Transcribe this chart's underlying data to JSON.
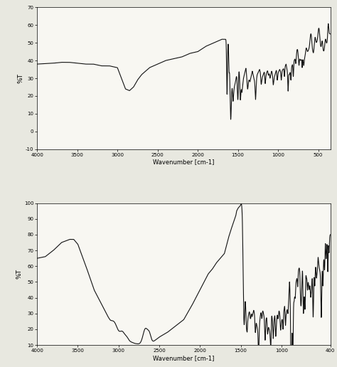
{
  "chart_a": {
    "xlabel": "Wavenumber [cm-1]",
    "ylabel": "%T",
    "xlim": [
      4000,
      350
    ],
    "ylim": [
      -10,
      70
    ],
    "yticks": [
      -10,
      0,
      10,
      20,
      30,
      40,
      50,
      60,
      70
    ],
    "xticks": [
      4000,
      3500,
      3000,
      2500,
      2000,
      1500,
      1000,
      500
    ],
    "xticklabels": [
      "4000",
      "3500",
      "3000",
      "2500",
      "2000",
      "1500",
      "1000",
      "500"
    ],
    "yticklabels": [
      "-10",
      "0",
      "10",
      "20",
      "30",
      "40",
      "50",
      "60",
      "70"
    ]
  },
  "chart_b": {
    "xlabel": "Wavenumber [cm-1]",
    "ylabel": "%T",
    "xlim": [
      4000,
      400
    ],
    "ylim": [
      10,
      100
    ],
    "yticks": [
      10,
      20,
      30,
      40,
      50,
      60,
      70,
      80,
      90,
      100
    ],
    "xticks": [
      4000,
      3500,
      3000,
      2500,
      2000,
      1500,
      1000,
      400
    ],
    "xticklabels": [
      "4000",
      "3500",
      "3000",
      "2500",
      "2000",
      "1500",
      "1000",
      "400"
    ],
    "yticklabels": [
      "10",
      "20",
      "30",
      "40",
      "50",
      "60",
      "70",
      "80",
      "90",
      "100"
    ]
  },
  "line_color": "#111111",
  "line_width": 0.8,
  "background": "#f8f7f2",
  "fig_bg": "#e8e8e0"
}
